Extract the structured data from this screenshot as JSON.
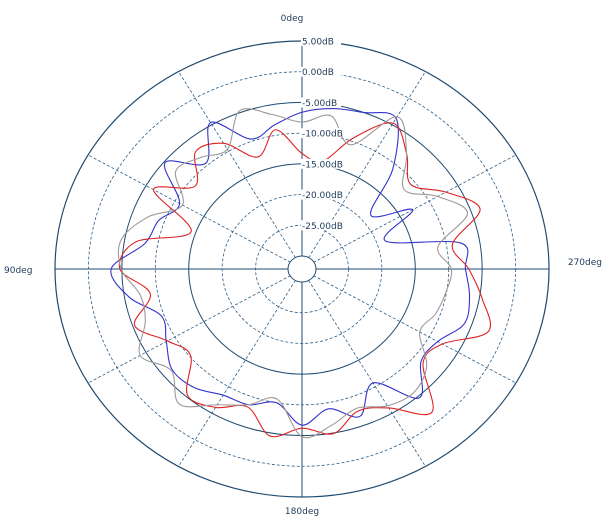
{
  "chart_data": {
    "type": "polar-line",
    "angle_labels": {
      "top": "0deg",
      "left": "90deg",
      "bottom": "180deg",
      "right": "270deg"
    },
    "angle_direction": "counterclockwise",
    "zero_direction": "top",
    "radial_axis": {
      "min_db": -30,
      "max_db": 5,
      "unit": "dB",
      "ticks": [
        {
          "value": 5,
          "label": "5.00dB"
        },
        {
          "value": 0,
          "label": "0.00dB"
        },
        {
          "value": -5,
          "label": "-5.00dB"
        },
        {
          "value": -10,
          "label": "-10.00dB"
        },
        {
          "value": -15,
          "label": "-15.00dB"
        },
        {
          "value": -20,
          "label": "-20.00dB"
        },
        {
          "value": -25,
          "label": "-25.00dB"
        }
      ],
      "solid_rings": [
        5,
        -5,
        -15
      ],
      "dashed_rings": [
        0,
        -10,
        -20,
        -25
      ]
    },
    "spokes_deg": [
      0,
      30,
      60,
      90,
      120,
      150,
      180,
      210,
      240,
      270,
      300,
      330
    ],
    "grid": true,
    "colors": {
      "grid": "#2c5f8a",
      "frame": "#1f4a70"
    },
    "series": [
      {
        "color": "#3333cc",
        "points": [
          {
            "angle": 0,
            "db": -6.6
          },
          {
            "angle": 10,
            "db": -8.3
          },
          {
            "angle": 20,
            "db": -9.6
          },
          {
            "angle": 30,
            "db": -4.6
          },
          {
            "angle": 40,
            "db": -9.6
          },
          {
            "angle": 50,
            "db": -5.2
          },
          {
            "angle": 60,
            "db": -10.8
          },
          {
            "angle": 70,
            "db": -9.1
          },
          {
            "angle": 80,
            "db": -8.1
          },
          {
            "angle": 90,
            "db": -3.4
          },
          {
            "angle": 100,
            "db": -5.7
          },
          {
            "angle": 110,
            "db": -9.6
          },
          {
            "angle": 120,
            "db": -8.5
          },
          {
            "angle": 130,
            "db": -6.6
          },
          {
            "angle": 140,
            "db": -6.9
          },
          {
            "angle": 150,
            "db": -8.4
          },
          {
            "angle": 160,
            "db": -8.6
          },
          {
            "angle": 170,
            "db": -10.0
          },
          {
            "angle": 180,
            "db": -6.7
          },
          {
            "angle": 190,
            "db": -9.0
          },
          {
            "angle": 200,
            "db": -6.6
          },
          {
            "angle": 210,
            "db": -10.7
          },
          {
            "angle": 220,
            "db": -4.7
          },
          {
            "angle": 230,
            "db": -8.7
          },
          {
            "angle": 240,
            "db": -8.5
          },
          {
            "angle": 250,
            "db": -6.1
          },
          {
            "angle": 260,
            "db": -6.5
          },
          {
            "angle": 270,
            "db": -7.5
          },
          {
            "angle": 280,
            "db": -7.8
          },
          {
            "angle": 290,
            "db": -18.7
          },
          {
            "angle": 300,
            "db": -12.8
          },
          {
            "angle": 310,
            "db": -18.5
          },
          {
            "angle": 320,
            "db": -10.8
          },
          {
            "angle": 330,
            "db": -3.8
          },
          {
            "angle": 340,
            "db": -5.0
          },
          {
            "angle": 350,
            "db": -5.6
          }
        ]
      },
      {
        "color": "#dd2222",
        "points": [
          {
            "angle": 0,
            "db": -13.3
          },
          {
            "angle": 10,
            "db": -9.1
          },
          {
            "angle": 20,
            "db": -12.7
          },
          {
            "angle": 30,
            "db": -8.5
          },
          {
            "angle": 40,
            "db": -7.2
          },
          {
            "angle": 50,
            "db": -11.1
          },
          {
            "angle": 60,
            "db": -6.3
          },
          {
            "angle": 70,
            "db": -14.3
          },
          {
            "angle": 80,
            "db": -6.7
          },
          {
            "angle": 90,
            "db": -4.7
          },
          {
            "angle": 100,
            "db": -8.9
          },
          {
            "angle": 110,
            "db": -5.3
          },
          {
            "angle": 120,
            "db": -8.7
          },
          {
            "angle": 130,
            "db": -10.2
          },
          {
            "angle": 140,
            "db": -5.3
          },
          {
            "angle": 150,
            "db": -6.1
          },
          {
            "angle": 160,
            "db": -8.2
          },
          {
            "angle": 170,
            "db": -4.5
          },
          {
            "angle": 180,
            "db": -6.2
          },
          {
            "angle": 190,
            "db": -4.9
          },
          {
            "angle": 200,
            "db": -7.5
          },
          {
            "angle": 210,
            "db": -6.0
          },
          {
            "angle": 220,
            "db": -1.7
          },
          {
            "angle": 230,
            "db": -8.3
          },
          {
            "angle": 240,
            "db": -7.7
          },
          {
            "angle": 250,
            "db": -2.3
          },
          {
            "angle": 260,
            "db": -4.6
          },
          {
            "angle": 270,
            "db": -7.0
          },
          {
            "angle": 280,
            "db": -9.1
          },
          {
            "angle": 290,
            "db": -3.6
          },
          {
            "angle": 300,
            "db": -7.1
          },
          {
            "angle": 310,
            "db": -10.7
          },
          {
            "angle": 320,
            "db": -7.6
          },
          {
            "angle": 330,
            "db": -4.7
          },
          {
            "angle": 340,
            "db": -9.4
          },
          {
            "angle": 350,
            "db": -14.3
          }
        ]
      },
      {
        "color": "#a09898",
        "points": [
          {
            "angle": 0,
            "db": -8.2
          },
          {
            "angle": 10,
            "db": -6.6
          },
          {
            "angle": 20,
            "db": -4.7
          },
          {
            "angle": 30,
            "db": -9.6
          },
          {
            "angle": 40,
            "db": -8.4
          },
          {
            "angle": 50,
            "db": -7.3
          },
          {
            "angle": 60,
            "db": -11.3
          },
          {
            "angle": 70,
            "db": -7.4
          },
          {
            "angle": 80,
            "db": -4.5
          },
          {
            "angle": 90,
            "db": -4.9
          },
          {
            "angle": 100,
            "db": -7.4
          },
          {
            "angle": 110,
            "db": -7.0
          },
          {
            "angle": 120,
            "db": -4.0
          },
          {
            "angle": 130,
            "db": -6.4
          },
          {
            "angle": 140,
            "db": -3.4
          },
          {
            "angle": 150,
            "db": -6.6
          },
          {
            "angle": 160,
            "db": -8.6
          },
          {
            "angle": 170,
            "db": -10.6
          },
          {
            "angle": 180,
            "db": -4.8
          },
          {
            "angle": 190,
            "db": -6.3
          },
          {
            "angle": 200,
            "db": -8.0
          },
          {
            "angle": 210,
            "db": -6.4
          },
          {
            "angle": 220,
            "db": -5.9
          },
          {
            "angle": 230,
            "db": -7.6
          },
          {
            "angle": 240,
            "db": -11.6
          },
          {
            "angle": 250,
            "db": -10.7
          },
          {
            "angle": 260,
            "db": -10.1
          },
          {
            "angle": 270,
            "db": -9.6
          },
          {
            "angle": 280,
            "db": -11.3
          },
          {
            "angle": 290,
            "db": -5.6
          },
          {
            "angle": 300,
            "db": -8.5
          },
          {
            "angle": 310,
            "db": -12.0
          },
          {
            "angle": 320,
            "db": -7.6
          },
          {
            "angle": 330,
            "db": -3.5
          },
          {
            "angle": 340,
            "db": -10.6
          },
          {
            "angle": 350,
            "db": -6.8
          }
        ]
      }
    ]
  }
}
